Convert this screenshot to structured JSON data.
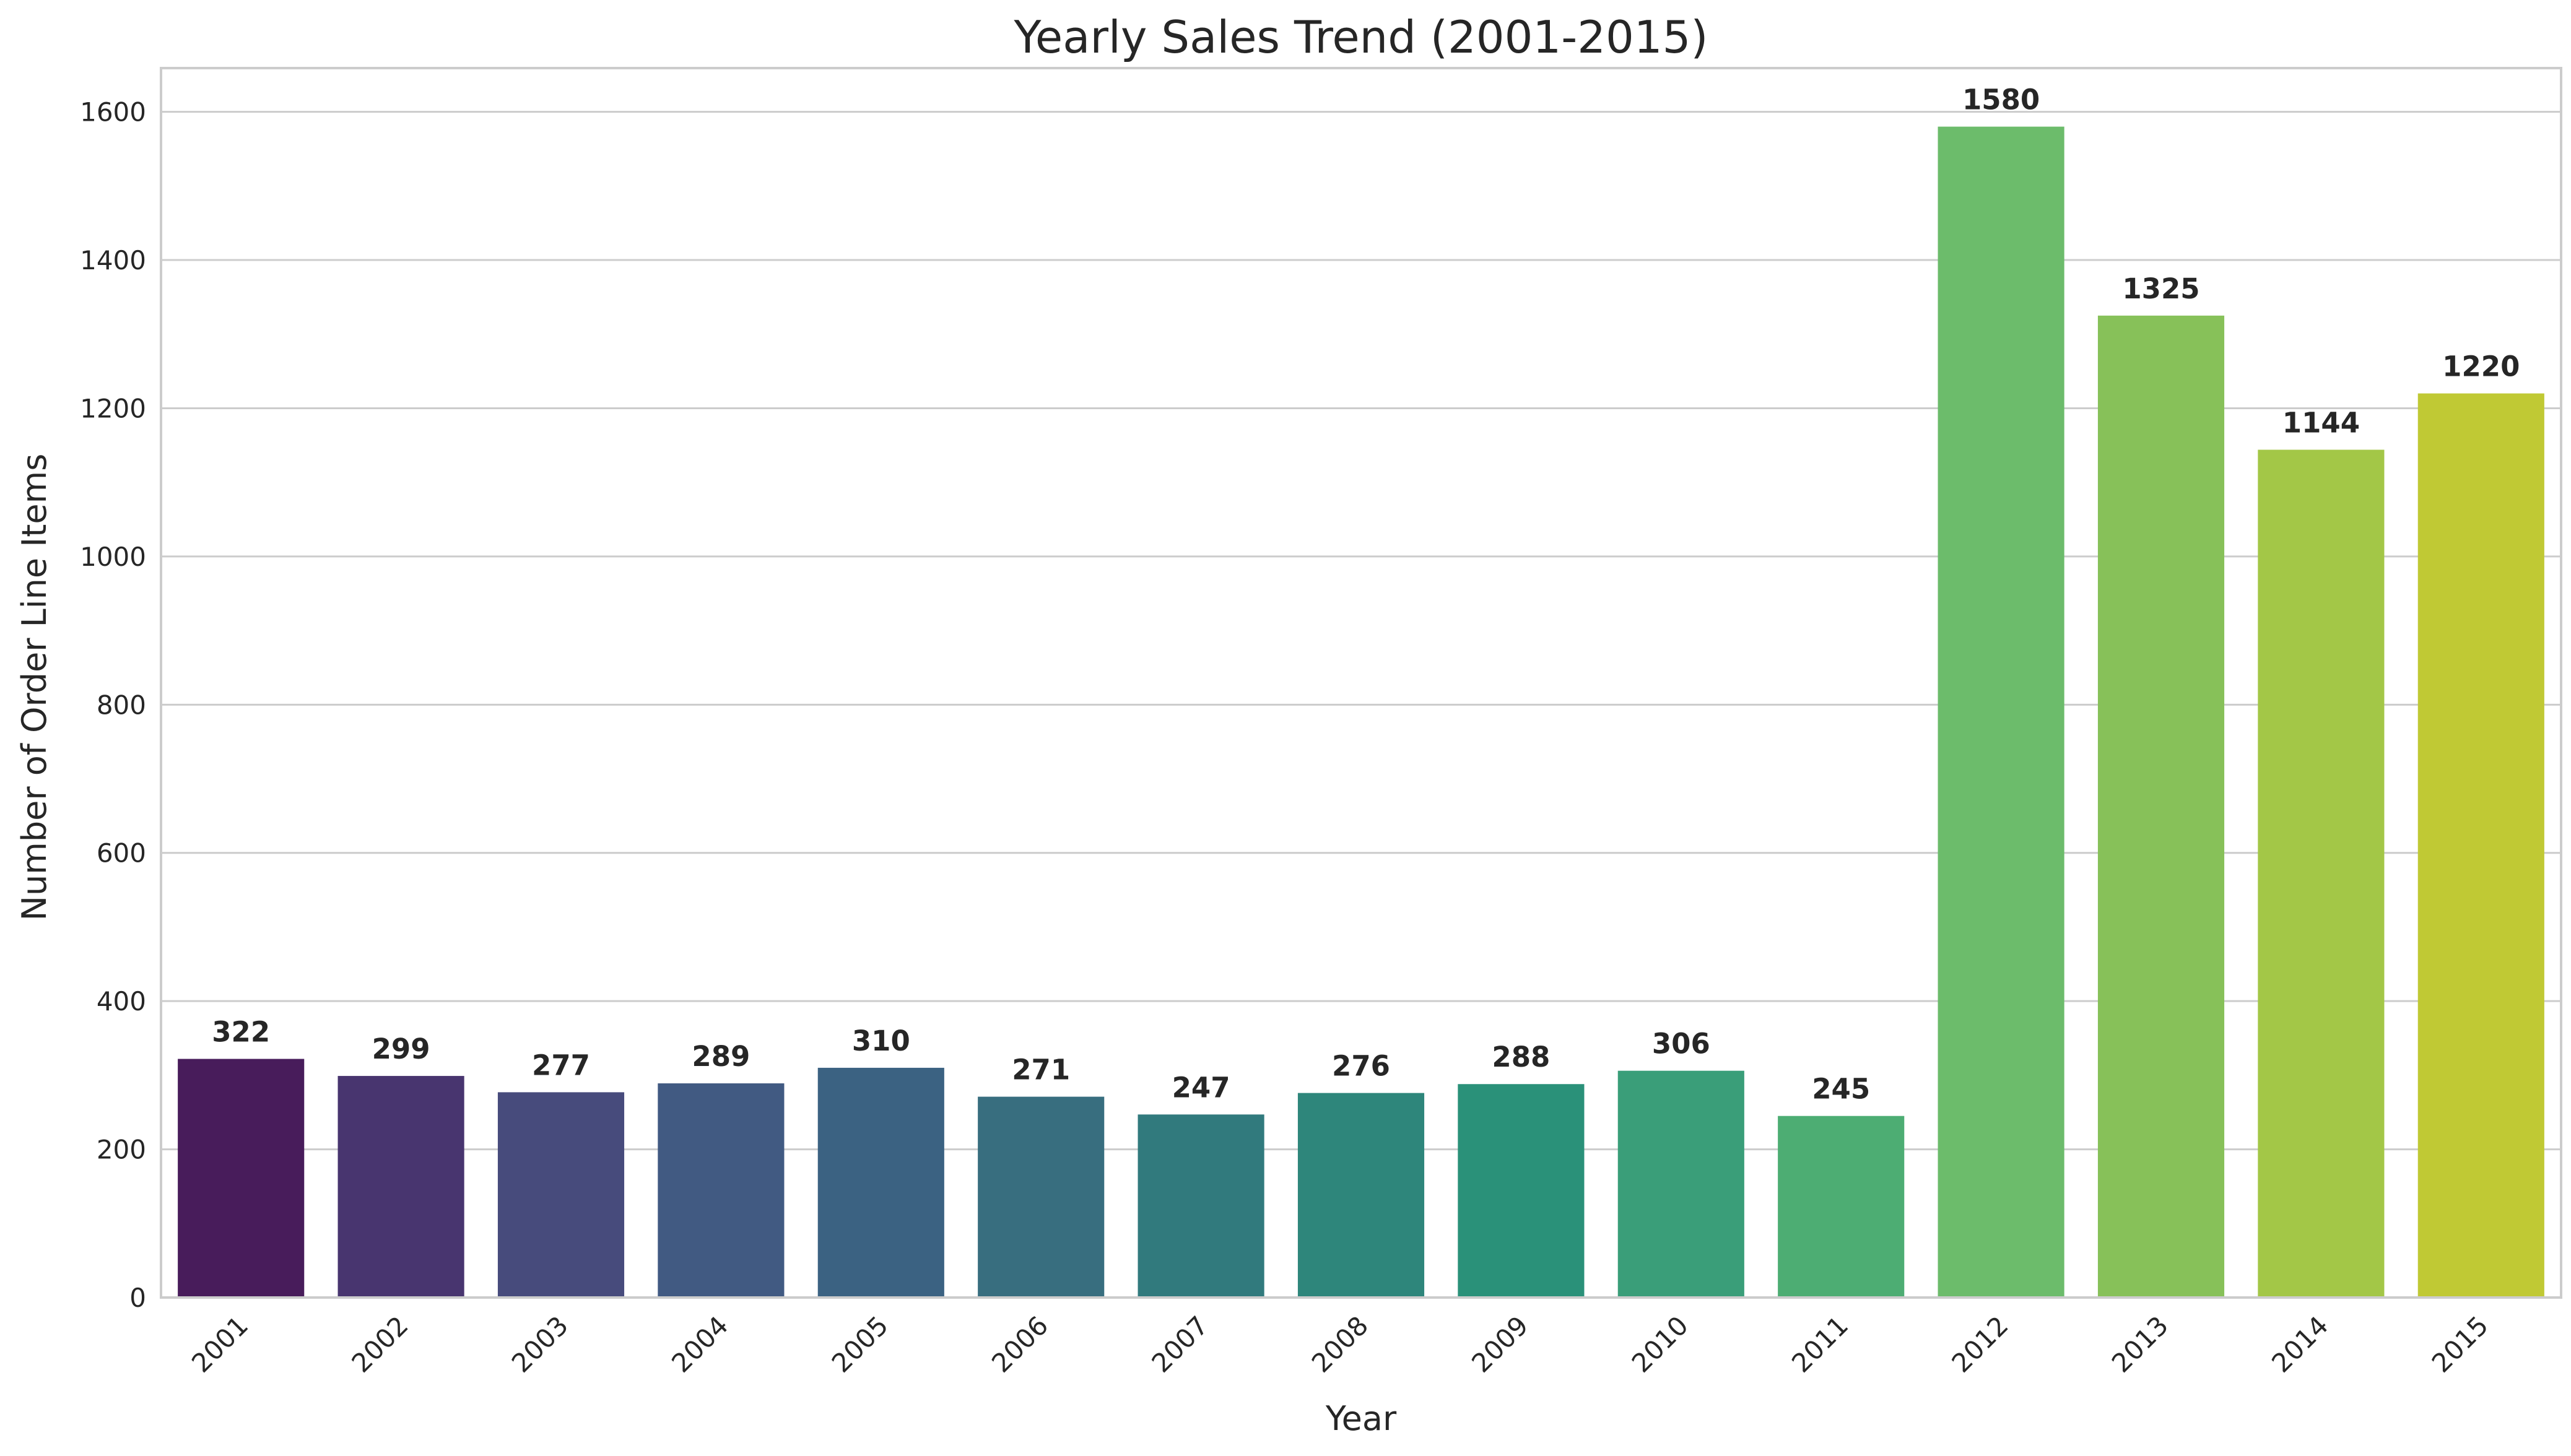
{
  "chart_data": {
    "type": "bar",
    "title": "Yearly Sales Trend (2001-2015)",
    "xlabel": "Year",
    "ylabel": "Number of Order Line Items",
    "categories": [
      "2001",
      "2002",
      "2003",
      "2004",
      "2005",
      "2006",
      "2007",
      "2008",
      "2009",
      "2010",
      "2011",
      "2012",
      "2013",
      "2014",
      "2015"
    ],
    "values": [
      322,
      299,
      277,
      289,
      310,
      271,
      247,
      276,
      288,
      306,
      245,
      1580,
      1325,
      1144,
      1220
    ],
    "value_labels": [
      "322",
      "299",
      "277",
      "289",
      "310",
      "271",
      "247",
      "276",
      "288",
      "306",
      "245",
      "1580",
      "1325",
      "1144",
      "1220"
    ],
    "ylim": [
      0,
      1659
    ],
    "yticks": [
      0,
      200,
      400,
      600,
      800,
      1000,
      1200,
      1400,
      1600
    ],
    "ytick_labels": [
      "0",
      "200",
      "400",
      "600",
      "800",
      "1000",
      "1200",
      "1400",
      "1600"
    ],
    "grid": "horizontal",
    "x_tick_rotation": "45 degrees",
    "colors": [
      "#481c5b",
      "#48356f",
      "#474b7c",
      "#415a82",
      "#3b6282",
      "#386e7f",
      "#317a7d",
      "#2e867b",
      "#2a9179",
      "#3a9e79",
      "#4dad73",
      "#6cbc6b",
      "#87c159",
      "#a3c747",
      "#c0c934"
    ]
  }
}
